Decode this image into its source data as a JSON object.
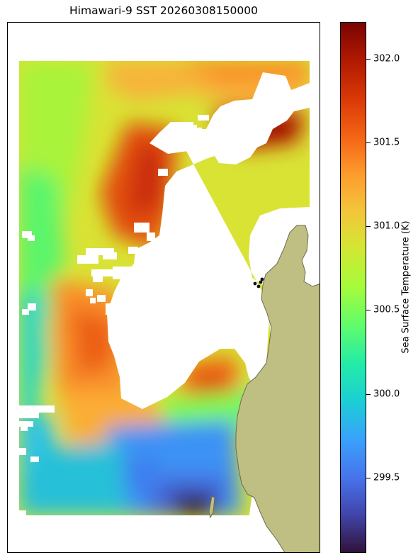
{
  "title": "Himawari-9 SST 20260308150000",
  "colorbar": {
    "label": "Sea Surface Temperature (K)",
    "min": 299.05,
    "max": 302.22,
    "ticks": [
      {
        "value": 299.5,
        "label": "299.5"
      },
      {
        "value": 300.0,
        "label": "300.0"
      },
      {
        "value": 300.5,
        "label": "300.5"
      },
      {
        "value": 301.0,
        "label": "301.0"
      },
      {
        "value": 301.5,
        "label": "301.5"
      },
      {
        "value": 302.0,
        "label": "302.0"
      }
    ],
    "colormap": [
      "#30123b",
      "#4145ab",
      "#4675ed",
      "#39a2fc",
      "#1bcfd4",
      "#24eca6",
      "#61fc6c",
      "#a4fc3b",
      "#d1e834",
      "#f3c63a",
      "#fe9b2d",
      "#f36315",
      "#d93806",
      "#b11901",
      "#7a0403"
    ]
  },
  "layers": {
    "sst_field": "sea-surface-temperature",
    "land": "coastline-land",
    "cloud_mask": "no-data-clouds",
    "islands": "small-islands"
  },
  "colors": {
    "land": "#bfbf84",
    "coast": "#6b6b4a",
    "cloud": "#ffffff"
  }
}
